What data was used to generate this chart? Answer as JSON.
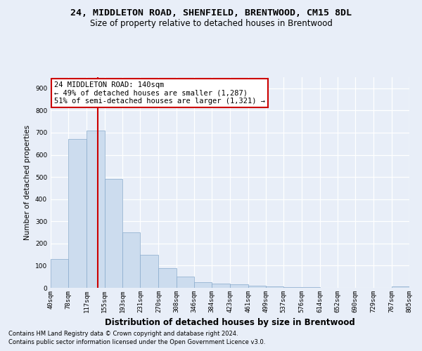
{
  "title1": "24, MIDDLETON ROAD, SHENFIELD, BRENTWOOD, CM15 8DL",
  "title2": "Size of property relative to detached houses in Brentwood",
  "xlabel": "Distribution of detached houses by size in Brentwood",
  "ylabel": "Number of detached properties",
  "footer1": "Contains HM Land Registry data © Crown copyright and database right 2024.",
  "footer2": "Contains public sector information licensed under the Open Government Licence v3.0.",
  "annotation_line1": "24 MIDDLETON ROAD: 140sqm",
  "annotation_line2": "← 49% of detached houses are smaller (1,287)",
  "annotation_line3": "51% of semi-detached houses are larger (1,321) →",
  "bar_color": "#ccdcee",
  "bar_edge_color": "#88aacc",
  "redline_x": 140,
  "bin_edges": [
    40,
    78,
    117,
    155,
    193,
    231,
    270,
    308,
    346,
    384,
    423,
    461,
    499,
    537,
    576,
    614,
    652,
    690,
    729,
    767,
    805
  ],
  "bar_heights": [
    130,
    670,
    710,
    490,
    250,
    150,
    88,
    50,
    25,
    18,
    15,
    10,
    5,
    3,
    2,
    1,
    1,
    1,
    1,
    5
  ],
  "ylim": [
    0,
    950
  ],
  "yticks": [
    0,
    100,
    200,
    300,
    400,
    500,
    600,
    700,
    800,
    900
  ],
  "background_color": "#e8eef8",
  "grid_color": "#ffffff",
  "annotation_box_color": "#ffffff",
  "annotation_box_edge": "#cc0000",
  "redline_color": "#cc0000",
  "title1_fontsize": 9.5,
  "title2_fontsize": 8.5,
  "xlabel_fontsize": 8.5,
  "ylabel_fontsize": 7.5,
  "tick_fontsize": 6.5,
  "footer_fontsize": 6.0,
  "annotation_fontsize": 7.5
}
